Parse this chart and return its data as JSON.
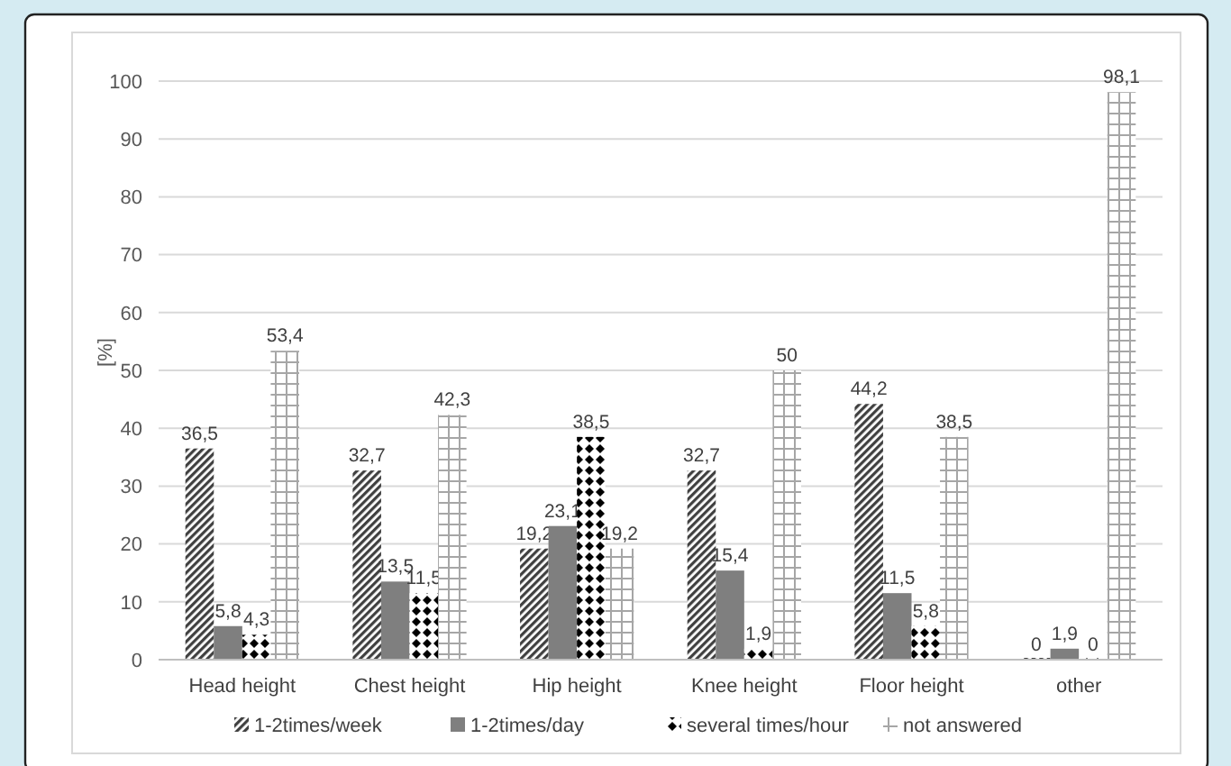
{
  "chart_data": {
    "type": "bar",
    "ylabel": "[%]",
    "categories": [
      "Head height",
      "Chest height",
      "Hip height",
      "Knee height",
      "Floor height",
      "other"
    ],
    "series": [
      {
        "name": "1-2times/week",
        "color": "#404040",
        "values": [
          36.5,
          32.7,
          19.2,
          32.7,
          44.2,
          0
        ],
        "value_labels": [
          "36,5",
          "32,7",
          "19,2",
          "32,7",
          "44,2",
          "0"
        ]
      },
      {
        "name": "1-2times/day",
        "color": "#7f7f7f",
        "values": [
          5.8,
          13.5,
          23.1,
          15.4,
          11.5,
          1.9
        ],
        "value_labels": [
          "5,8",
          "13,5",
          "23,1",
          "15,4",
          "11,5",
          "1,9"
        ]
      },
      {
        "name": "several times/hour",
        "color": "#000000",
        "values": [
          4.3,
          11.5,
          38.5,
          1.9,
          5.8,
          0
        ],
        "value_labels": [
          "4,3",
          "11,5",
          "38,5",
          "1,9",
          "5,8",
          "0"
        ]
      },
      {
        "name": "not answered",
        "color": "#a6a6a6",
        "values": [
          53.4,
          42.3,
          19.2,
          50,
          38.5,
          98.1
        ],
        "value_labels": [
          "53,4",
          "42,3",
          "19,2",
          "50",
          "38,5",
          "98,1"
        ]
      }
    ],
    "ylim": [
      0,
      100
    ],
    "yticks": [
      0,
      10,
      20,
      30,
      40,
      50,
      60,
      70,
      80,
      90,
      100
    ],
    "grid": "y",
    "legend": "bottom"
  }
}
